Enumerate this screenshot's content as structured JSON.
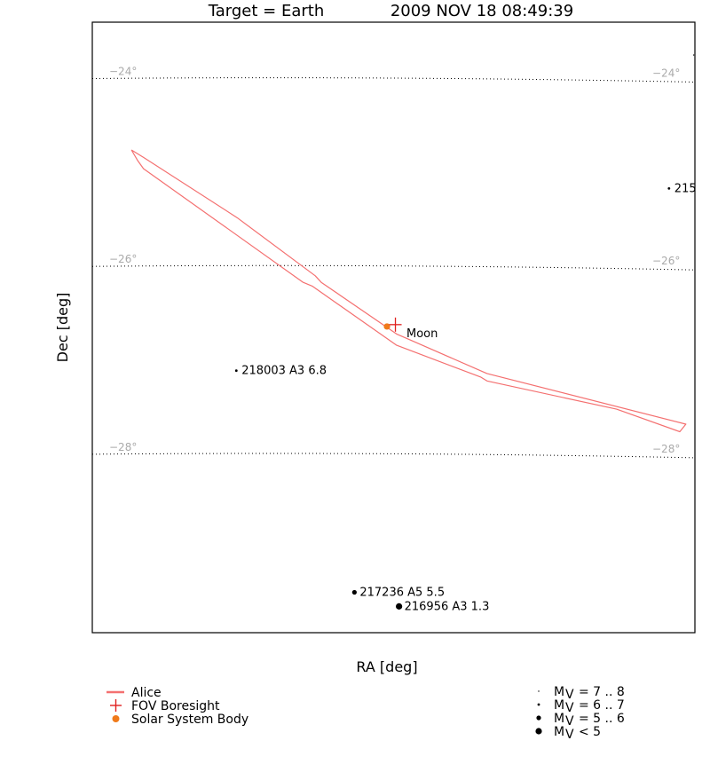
{
  "chart_data": {
    "type": "scatter",
    "title_target": "Target = Earth",
    "title_time": "2009 NOV 18 08:49:39",
    "xlabel": "RA [deg]",
    "ylabel": "Dec [deg]",
    "ylim": [
      -29.9,
      -23.4
    ],
    "dec_gridlines": [
      {
        "dec": -24,
        "label": "−24°"
      },
      {
        "dec": -26,
        "label": "−26°"
      },
      {
        "dec": -28,
        "label": "−28°"
      }
    ],
    "colors": {
      "alice": "#f47070",
      "boresight": "#e0201e",
      "solar_body": "#f07a1a",
      "grid": "#000000",
      "grid_label": "#aaaaaa"
    },
    "alice_slit": {
      "name": "Alice",
      "outline": [
        {
          "col": 0.065,
          "dec": -24.76
        },
        {
          "col": 0.085,
          "dec": -24.84
        },
        {
          "col": 0.24,
          "dec": -25.48
        },
        {
          "col": 0.37,
          "dec": -26.1
        },
        {
          "col": 0.38,
          "dec": -26.17
        },
        {
          "col": 0.505,
          "dec": -26.72
        },
        {
          "col": 0.655,
          "dec": -27.14
        },
        {
          "col": 0.985,
          "dec": -27.68
        },
        {
          "col": 0.975,
          "dec": -27.76
        },
        {
          "col": 0.87,
          "dec": -27.52
        },
        {
          "col": 0.655,
          "dec": -27.22
        },
        {
          "col": 0.645,
          "dec": -27.18
        },
        {
          "col": 0.505,
          "dec": -26.84
        },
        {
          "col": 0.365,
          "dec": -26.21
        },
        {
          "col": 0.35,
          "dec": -26.17
        },
        {
          "col": 0.085,
          "dec": -24.96
        },
        {
          "col": 0.075,
          "dec": -24.87
        },
        {
          "col": 0.065,
          "dec": -24.76
        }
      ]
    },
    "boresight": {
      "name": "FOV Boresight",
      "col": 0.503,
      "dec": -26.62
    },
    "solar_body": {
      "name": "Moon",
      "col": 0.489,
      "dec": -26.64,
      "label": "Moon"
    },
    "stars": [
      {
        "label": "218003 A3 6.8",
        "col": 0.239,
        "dec": -27.11,
        "mag_class": 1
      },
      {
        "label": "217236 A5 5.5",
        "col": 0.435,
        "dec": -29.47,
        "mag_class": 2
      },
      {
        "label": "216956 A3 1.3",
        "col": 0.509,
        "dec": -29.62,
        "mag_class": 3
      },
      {
        "label": "215",
        "col": 0.957,
        "dec": -25.17,
        "mag_class": 1
      },
      {
        "label": "",
        "col": 0.998,
        "dec": -23.75,
        "mag_class": 0
      }
    ],
    "legend_left": [
      {
        "name": "Alice",
        "symbol": "line"
      },
      {
        "name": "FOV Boresight",
        "symbol": "cross"
      },
      {
        "name": "Solar System Body",
        "symbol": "dot"
      }
    ],
    "legend_right": [
      {
        "prefix": "M",
        "sub": "V",
        "range": "= 7 .. 8",
        "mag_class": 0
      },
      {
        "prefix": "M",
        "sub": "V",
        "range": "= 6 .. 7",
        "mag_class": 1
      },
      {
        "prefix": "M",
        "sub": "V",
        "range": "= 5 .. 6",
        "mag_class": 2
      },
      {
        "prefix": "M",
        "sub": "V",
        "range": "< 5",
        "mag_class": 3
      }
    ]
  }
}
